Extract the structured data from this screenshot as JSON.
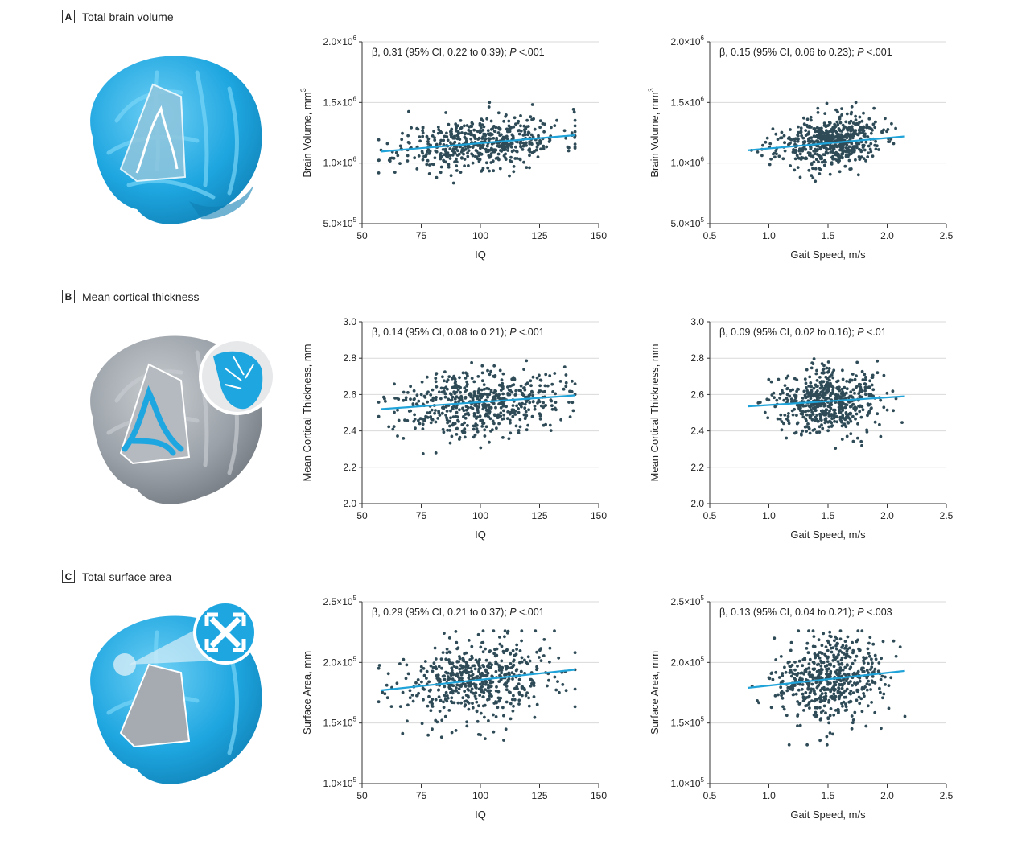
{
  "panels": [
    {
      "letter": "A",
      "title": "Total brain volume"
    },
    {
      "letter": "B",
      "title": "Mean cortical thickness"
    },
    {
      "letter": "C",
      "title": "Total surface area"
    }
  ],
  "colors": {
    "points": "#2e4b57",
    "fit": "#1fa3d8",
    "grid": "#d9d9d9",
    "brain_blue": "#1ea6e0",
    "brain_gray": "#9aa1a8"
  },
  "chart_data": [
    {
      "type": "scatter",
      "row": "A",
      "annotation": {
        "pre": "β, 0.31 (95% CI, 0.22 to 0.39); ",
        "p": "P",
        "post": " <.001"
      },
      "xlabel": "IQ",
      "ylabel": "Brain Volume, mm",
      "ylabel_sup": "3",
      "xlim": [
        50,
        150
      ],
      "ylim": [
        500000,
        2000000
      ],
      "xticks": [
        50,
        75,
        100,
        125,
        150
      ],
      "yticks": [
        {
          "v": 500000,
          "m": "5.0×10",
          "e": "5"
        },
        {
          "v": 1000000,
          "m": "1.0×10",
          "e": "6"
        },
        {
          "v": 1500000,
          "m": "1.5×10",
          "e": "6"
        },
        {
          "v": 2000000,
          "m": "2.0×10",
          "e": "6"
        }
      ],
      "fit": {
        "x": [
          58,
          140
        ],
        "y": [
          1095000,
          1230000
        ]
      },
      "points": {
        "n": 560,
        "x_mean": 100,
        "x_sd": 17,
        "x_min": 57,
        "x_max": 140,
        "y_mean": 1170000,
        "y_sd": 105000,
        "y_min": 760000,
        "y_max": 1500000,
        "slope": 1650,
        "seed": 11
      }
    },
    {
      "type": "scatter",
      "row": "A",
      "annotation": {
        "pre": "β, 0.15 (95% CI, 0.06 to 0.23); ",
        "p": "P",
        "post": " <.001"
      },
      "xlabel": "Gait Speed, m/s",
      "ylabel": "Brain Volume, mm",
      "ylabel_sup": "3",
      "xlim": [
        0.5,
        2.5
      ],
      "ylim": [
        500000,
        2000000
      ],
      "xticks": [
        0.5,
        1.0,
        1.5,
        2.0,
        2.5
      ],
      "yticks": [
        {
          "v": 500000,
          "m": "5.0×10",
          "e": "5"
        },
        {
          "v": 1000000,
          "m": "1.0×10",
          "e": "6"
        },
        {
          "v": 1500000,
          "m": "1.5×10",
          "e": "6"
        },
        {
          "v": 2000000,
          "m": "2.0×10",
          "e": "6"
        }
      ],
      "fit": {
        "x": [
          0.82,
          2.15
        ],
        "y": [
          1105000,
          1220000
        ]
      },
      "points": {
        "n": 560,
        "x_mean": 1.5,
        "x_sd": 0.22,
        "x_min": 0.82,
        "x_max": 2.15,
        "y_mean": 1170000,
        "y_sd": 105000,
        "y_min": 760000,
        "y_max": 1500000,
        "slope": 86000,
        "seed": 23
      }
    },
    {
      "type": "scatter",
      "row": "B",
      "annotation": {
        "pre": "β, 0.14 (95% CI, 0.08 to 0.21); ",
        "p": "P",
        "post": " <.001"
      },
      "xlabel": "IQ",
      "ylabel": "Mean Cortical Thickness, mm",
      "ylabel_sup": "",
      "xlim": [
        50,
        150
      ],
      "ylim": [
        2.0,
        3.0
      ],
      "xticks": [
        50,
        75,
        100,
        125,
        150
      ],
      "yticks": [
        {
          "v": 2.0,
          "m": "2.0",
          "e": ""
        },
        {
          "v": 2.2,
          "m": "2.2",
          "e": ""
        },
        {
          "v": 2.4,
          "m": "2.4",
          "e": ""
        },
        {
          "v": 2.6,
          "m": "2.6",
          "e": ""
        },
        {
          "v": 2.8,
          "m": "2.8",
          "e": ""
        },
        {
          "v": 3.0,
          "m": "3.0",
          "e": ""
        }
      ],
      "fit": {
        "x": [
          58,
          140
        ],
        "y": [
          2.52,
          2.595
        ]
      },
      "points": {
        "n": 560,
        "x_mean": 100,
        "x_sd": 17,
        "x_min": 57,
        "x_max": 140,
        "y_mean": 2.56,
        "y_sd": 0.09,
        "y_min": 2.24,
        "y_max": 2.85,
        "slope": 0.0009,
        "seed": 37
      }
    },
    {
      "type": "scatter",
      "row": "B",
      "annotation": {
        "pre": "β, 0.09 (95% CI, 0.02 to 0.16); ",
        "p": "P",
        "post": " <.01"
      },
      "xlabel": "Gait Speed, m/s",
      "ylabel": "Mean Cortical Thickness, mm",
      "ylabel_sup": "",
      "xlim": [
        0.5,
        2.5
      ],
      "ylim": [
        2.0,
        3.0
      ],
      "xticks": [
        0.5,
        1.0,
        1.5,
        2.0,
        2.5
      ],
      "yticks": [
        {
          "v": 2.0,
          "m": "2.0",
          "e": ""
        },
        {
          "v": 2.2,
          "m": "2.2",
          "e": ""
        },
        {
          "v": 2.4,
          "m": "2.4",
          "e": ""
        },
        {
          "v": 2.6,
          "m": "2.6",
          "e": ""
        },
        {
          "v": 2.8,
          "m": "2.8",
          "e": ""
        },
        {
          "v": 3.0,
          "m": "3.0",
          "e": ""
        }
      ],
      "fit": {
        "x": [
          0.82,
          2.15
        ],
        "y": [
          2.535,
          2.59
        ]
      },
      "points": {
        "n": 560,
        "x_mean": 1.5,
        "x_sd": 0.22,
        "x_min": 0.82,
        "x_max": 2.15,
        "y_mean": 2.56,
        "y_sd": 0.09,
        "y_min": 2.24,
        "y_max": 2.85,
        "slope": 0.04,
        "seed": 41
      }
    },
    {
      "type": "scatter",
      "row": "C",
      "annotation": {
        "pre": "β, 0.29 (95% CI, 0.21 to 0.37); ",
        "p": "P",
        "post": " <.001"
      },
      "xlabel": "IQ",
      "ylabel": "Surface Area, mm",
      "ylabel_sup": "",
      "xlim": [
        50,
        150
      ],
      "ylim": [
        100000,
        250000
      ],
      "xticks": [
        50,
        75,
        100,
        125,
        150
      ],
      "yticks": [
        {
          "v": 100000,
          "m": "1.0×10",
          "e": "5"
        },
        {
          "v": 150000,
          "m": "1.5×10",
          "e": "5"
        },
        {
          "v": 200000,
          "m": "2.0×10",
          "e": "5"
        },
        {
          "v": 250000,
          "m": "2.5×10",
          "e": "5"
        }
      ],
      "fit": {
        "x": [
          58,
          140
        ],
        "y": [
          177000,
          194000
        ]
      },
      "points": {
        "n": 560,
        "x_mean": 100,
        "x_sd": 17,
        "x_min": 57,
        "x_max": 140,
        "y_mean": 185000,
        "y_sd": 17000,
        "y_min": 132000,
        "y_max": 226000,
        "slope": 200,
        "seed": 53
      }
    },
    {
      "type": "scatter",
      "row": "C",
      "annotation": {
        "pre": "β, 0.13 (95% CI, 0.04 to 0.21); ",
        "p": "P",
        "post": " <.003"
      },
      "xlabel": "Gait Speed, m/s",
      "ylabel": "Surface Area, mm",
      "ylabel_sup": "",
      "xlim": [
        0.5,
        2.5
      ],
      "ylim": [
        100000,
        250000
      ],
      "xticks": [
        0.5,
        1.0,
        1.5,
        2.0,
        2.5
      ],
      "yticks": [
        {
          "v": 100000,
          "m": "1.0×10",
          "e": "5"
        },
        {
          "v": 150000,
          "m": "1.5×10",
          "e": "5"
        },
        {
          "v": 200000,
          "m": "2.0×10",
          "e": "5"
        },
        {
          "v": 250000,
          "m": "2.5×10",
          "e": "5"
        }
      ],
      "fit": {
        "x": [
          0.82,
          2.15
        ],
        "y": [
          179000,
          193000
        ]
      },
      "points": {
        "n": 560,
        "x_mean": 1.5,
        "x_sd": 0.22,
        "x_min": 0.82,
        "x_max": 2.15,
        "y_mean": 185000,
        "y_sd": 17000,
        "y_min": 132000,
        "y_max": 226000,
        "slope": 10500,
        "seed": 67
      }
    }
  ]
}
